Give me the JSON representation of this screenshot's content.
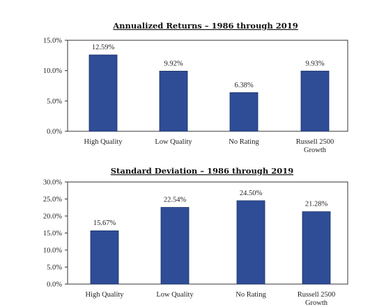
{
  "chart_data": [
    {
      "type": "bar",
      "title": "Annualized Returns – 1986 through 2019",
      "categories": [
        [
          "High Quality"
        ],
        [
          "Low Quality"
        ],
        [
          "No Rating"
        ],
        [
          "Russell 2500",
          "Growth"
        ]
      ],
      "values": [
        12.59,
        9.92,
        6.38,
        9.93
      ],
      "data_labels": [
        "12.59%",
        "9.92%",
        "6.38%",
        "9.93%"
      ],
      "ylim": [
        0,
        15
      ],
      "yticks": [
        0,
        5,
        10,
        15
      ],
      "ytick_labels": [
        "0.0%",
        "5.0%",
        "10.0%",
        "15.0%"
      ],
      "xlabel": "",
      "ylabel": "",
      "grid": false,
      "bar_color": "#2e4d96"
    },
    {
      "type": "bar",
      "title": "Standard Deviation – 1986 through 2019",
      "categories": [
        [
          "High Quality"
        ],
        [
          "Low Quality"
        ],
        [
          "No Rating"
        ],
        [
          "Russell 2500",
          "Growth"
        ]
      ],
      "values": [
        15.67,
        22.54,
        24.5,
        21.28
      ],
      "data_labels": [
        "15.67%",
        "22.54%",
        "24.50%",
        "21.28%"
      ],
      "ylim": [
        0,
        30
      ],
      "yticks": [
        0,
        5,
        10,
        15,
        20,
        25,
        30
      ],
      "ytick_labels": [
        "0.0%",
        "5.0%",
        "10.0%",
        "15.0%",
        "20.0%",
        "25.0%",
        "30.0%"
      ],
      "xlabel": "",
      "ylabel": "",
      "grid": false,
      "bar_color": "#2e4d96"
    }
  ]
}
